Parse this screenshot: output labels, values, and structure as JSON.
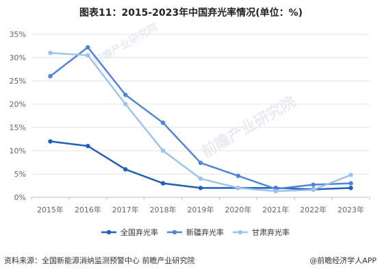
{
  "title": "图表11：2015-2023年中国弃光率情况(单位：%)",
  "source_text": "资料来源：全国新能源消纳监测预警中心 前瞻产业研究院",
  "brand_text": "@前瞻经济学人APP",
  "watermarks": [
    "前瞻产业研究院",
    "前瞻产业研究院"
  ],
  "chart_data": {
    "type": "line",
    "title": "图表11：2015-2023年中国弃光率情况(单位：%)",
    "xlabel": "",
    "ylabel": "",
    "ylim": [
      0,
      35
    ],
    "y_tick_labels": [
      "0%",
      "5%",
      "10%",
      "15%",
      "20%",
      "25%",
      "30%",
      "35%"
    ],
    "y_tick_values": [
      0,
      5,
      10,
      15,
      20,
      25,
      30,
      35
    ],
    "categories": [
      "2015年",
      "2016年",
      "2017年",
      "2018年",
      "2019年",
      "2020年",
      "2021年",
      "2022年",
      "2023年"
    ],
    "grid": true,
    "legend_position": "bottom",
    "series": [
      {
        "name": "全国弃光率",
        "color": "#1f5fb4",
        "values": [
          12,
          11,
          6,
          3,
          2,
          2,
          2,
          1.7,
          2
        ]
      },
      {
        "name": "新疆弃光率",
        "color": "#4f84d6",
        "values": [
          26,
          32.2,
          22,
          16,
          7.4,
          4.6,
          1.8,
          2.7,
          3
        ]
      },
      {
        "name": "甘肃弃光率",
        "color": "#9cc2ee",
        "values": [
          31,
          30.5,
          20,
          10,
          4,
          2,
          1.3,
          1.6,
          4.8
        ]
      }
    ]
  }
}
